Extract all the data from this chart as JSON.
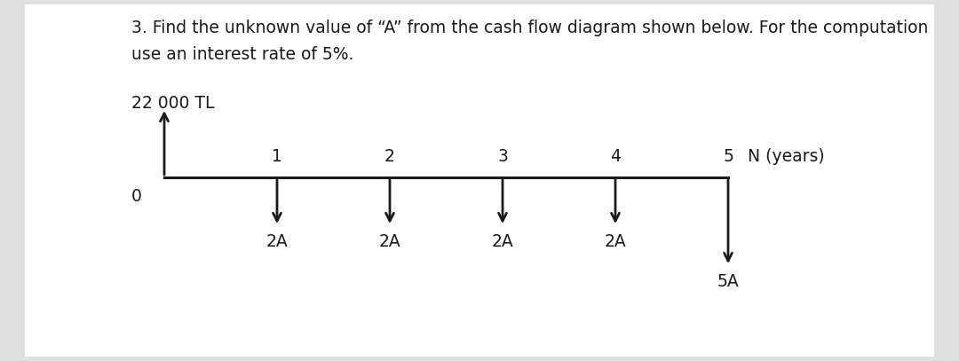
{
  "title_line1": "3. Find the unknown value of “A” from the cash flow diagram shown below. For the computation",
  "title_line2": "use an interest rate of 5%.",
  "amount_label": "22 000 TL",
  "zero_label": "0",
  "n_label": "N (years)",
  "timeline_periods": [
    1,
    2,
    3,
    4,
    5
  ],
  "down_arrows": [
    1,
    2,
    3,
    4
  ],
  "down_arrow_label": "2A",
  "big_down_arrow": 5,
  "big_down_label": "5A",
  "background_color": "#e0e0e0",
  "box_color": "#ffffff",
  "text_color": "#1a1a1a",
  "arrow_color": "#1a1a1a",
  "title_fontsize": 13.5,
  "label_fontsize": 13.5,
  "diagram_fontsize": 13.5
}
